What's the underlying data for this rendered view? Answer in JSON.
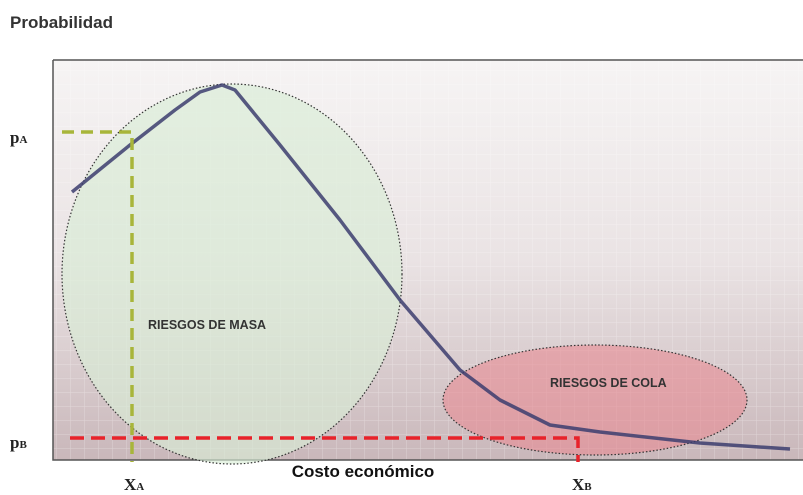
{
  "title": "Probabilidad",
  "x_axis_label": "Costo económico",
  "y_markers": [
    {
      "base": "p",
      "sub": "A"
    },
    {
      "base": "p",
      "sub": "B"
    }
  ],
  "x_markers": [
    {
      "base": "X",
      "sub": "A"
    },
    {
      "base": "X",
      "sub": "B"
    }
  ],
  "regions": [
    {
      "label": "RIESGOS DE MASA"
    },
    {
      "label": "RIESGOS DE COLA"
    }
  ]
}
